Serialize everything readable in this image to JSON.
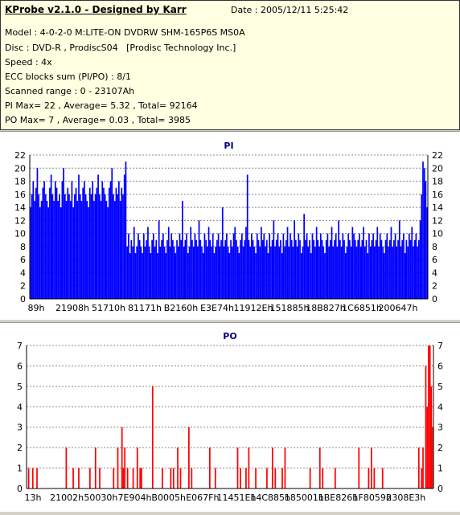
{
  "header": {
    "title": "KProbe v2.1.0 - Designed by Karr",
    "date": "Date : 2005/12/11 5:25:42",
    "lines": [
      "Model : 4-0-2-0 M:LITE-ON DVDRW SHM-165P6S MS0A",
      "Disc : DVD-R , ProdiscS04   [Prodisc Technology Inc.]",
      "Speed : 4x",
      "ECC blocks sum (PI/PO) : 8/1",
      "Scanned range : 0 - 23107Ah",
      "PI Max= 22 , Average= 5.32 , Total= 92164",
      "PO Max= 7 , Average= 0.03 , Total= 3985"
    ]
  },
  "chart_data": [
    {
      "type": "bar",
      "title": "PI",
      "color": "#0000ff",
      "ylim": [
        0,
        22
      ],
      "yticks": [
        0,
        2,
        4,
        6,
        8,
        10,
        12,
        14,
        16,
        18,
        20,
        22
      ],
      "xticks": [
        "89h",
        "21908h",
        "51710h",
        "81171h",
        "B2160h",
        "E3E74h",
        "11912Eh",
        "151885h",
        "18B827h",
        "1C6851h",
        "200647h"
      ],
      "grid": true,
      "values": [
        14,
        16,
        18,
        15,
        17,
        20,
        16,
        14,
        15,
        17,
        18,
        16,
        15,
        14,
        17,
        19,
        16,
        15,
        18,
        17,
        15,
        16,
        14,
        18,
        20,
        16,
        15,
        17,
        16,
        15,
        18,
        14,
        16,
        17,
        15,
        19,
        16,
        15,
        17,
        18,
        16,
        15,
        14,
        17,
        16,
        18,
        15,
        16,
        17,
        19,
        16,
        15,
        18,
        17,
        16,
        15,
        14,
        17,
        18,
        20,
        16,
        15,
        17,
        16,
        18,
        15,
        17,
        16,
        19,
        21,
        8,
        10,
        7,
        9,
        8,
        11,
        7,
        8,
        10,
        9,
        8,
        7,
        10,
        8,
        9,
        11,
        8,
        7,
        9,
        10,
        8,
        9,
        7,
        12,
        8,
        9,
        10,
        8,
        7,
        9,
        11,
        8,
        10,
        9,
        8,
        7,
        9,
        8,
        10,
        9,
        15,
        8,
        9,
        10,
        7,
        8,
        11,
        9,
        8,
        10,
        9,
        8,
        12,
        9,
        8,
        7,
        10,
        9,
        8,
        11,
        9,
        8,
        10,
        7,
        8,
        9,
        10,
        8,
        9,
        14,
        8,
        9,
        10,
        8,
        7,
        9,
        8,
        10,
        11,
        9,
        8,
        7,
        9,
        10,
        8,
        9,
        11,
        19,
        9,
        8,
        10,
        9,
        8,
        7,
        10,
        9,
        8,
        11,
        9,
        10,
        8,
        9,
        7,
        10,
        8,
        9,
        12,
        8,
        9,
        10,
        8,
        9,
        7,
        10,
        8,
        9,
        11,
        8,
        10,
        9,
        8,
        12,
        9,
        8,
        10,
        9,
        7,
        8,
        13,
        9,
        10,
        8,
        9,
        7,
        10,
        9,
        8,
        11,
        9,
        8,
        10,
        9,
        8,
        7,
        9,
        10,
        8,
        9,
        11,
        8,
        9,
        10,
        8,
        12,
        9,
        8,
        10,
        9,
        7,
        8,
        10,
        9,
        8,
        11,
        10,
        9,
        8,
        9,
        10,
        8,
        9,
        11,
        8,
        9,
        7,
        10,
        8,
        9,
        10,
        8,
        9,
        11,
        8,
        10,
        9,
        8,
        7,
        9,
        10,
        8,
        9,
        11,
        8,
        9,
        10,
        8,
        9,
        12,
        8,
        9,
        10,
        7,
        9,
        8,
        10,
        9,
        11,
        8,
        9,
        10,
        8,
        9,
        12,
        16,
        21,
        20,
        18,
        14
      ]
    },
    {
      "type": "bar",
      "title": "PO",
      "color": "#ff0000",
      "ylim": [
        0,
        7
      ],
      "yticks": [
        0,
        1,
        2,
        3,
        4,
        5,
        6,
        7
      ],
      "xticks": [
        "13h",
        "21002h",
        "50030h",
        "7E904h",
        "B0005h",
        "E067Fh",
        "11451Eh",
        "14C885h",
        "185001h",
        "1BE826h",
        "1F8059h",
        "2308E3h"
      ],
      "grid": true,
      "values": [
        0,
        1,
        0,
        0,
        1,
        0,
        0,
        1,
        0,
        0,
        0,
        0,
        0,
        0,
        0,
        0,
        0,
        0,
        0,
        0,
        0,
        0,
        0,
        0,
        0,
        0,
        0,
        0,
        2,
        0,
        0,
        0,
        0,
        1,
        0,
        0,
        0,
        1,
        0,
        0,
        0,
        0,
        0,
        0,
        0,
        1,
        0,
        0,
        0,
        2,
        0,
        0,
        1,
        0,
        0,
        0,
        0,
        0,
        0,
        0,
        0,
        0,
        1,
        0,
        0,
        2,
        0,
        0,
        3,
        1,
        2,
        0,
        1,
        0,
        0,
        0,
        1,
        0,
        0,
        2,
        0,
        1,
        1,
        0,
        0,
        0,
        0,
        0,
        0,
        0,
        5,
        0,
        0,
        0,
        0,
        0,
        0,
        1,
        0,
        0,
        0,
        0,
        0,
        1,
        0,
        1,
        0,
        0,
        2,
        0,
        1,
        0,
        0,
        0,
        0,
        0,
        3,
        0,
        1,
        0,
        0,
        0,
        0,
        0,
        0,
        0,
        0,
        0,
        0,
        0,
        0,
        2,
        0,
        0,
        0,
        1,
        0,
        0,
        0,
        0,
        0,
        0,
        0,
        0,
        0,
        0,
        0,
        0,
        0,
        0,
        0,
        2,
        0,
        1,
        0,
        0,
        0,
        1,
        0,
        2,
        0,
        0,
        0,
        0,
        1,
        0,
        0,
        0,
        0,
        0,
        0,
        0,
        1,
        0,
        0,
        0,
        2,
        0,
        1,
        0,
        0,
        0,
        0,
        1,
        0,
        2,
        0,
        0,
        0,
        0,
        0,
        0,
        0,
        0,
        0,
        0,
        0,
        0,
        0,
        0,
        0,
        0,
        0,
        1,
        0,
        0,
        0,
        0,
        0,
        0,
        2,
        0,
        1,
        0,
        0,
        0,
        0,
        0,
        0,
        0,
        0,
        1,
        0,
        0,
        0,
        0,
        0,
        0,
        0,
        0,
        0,
        0,
        0,
        0,
        0,
        0,
        0,
        0,
        2,
        0,
        0,
        0,
        0,
        0,
        0,
        1,
        0,
        2,
        0,
        1,
        0,
        0,
        0,
        0,
        0,
        1,
        0,
        0,
        0,
        0,
        0,
        0,
        0,
        0,
        0,
        0,
        0,
        0,
        0,
        0,
        0,
        0,
        0,
        0,
        0,
        0,
        0,
        0,
        0,
        0,
        0,
        2,
        0,
        1,
        2,
        0,
        6,
        4,
        7,
        7,
        5,
        3
      ]
    }
  ]
}
